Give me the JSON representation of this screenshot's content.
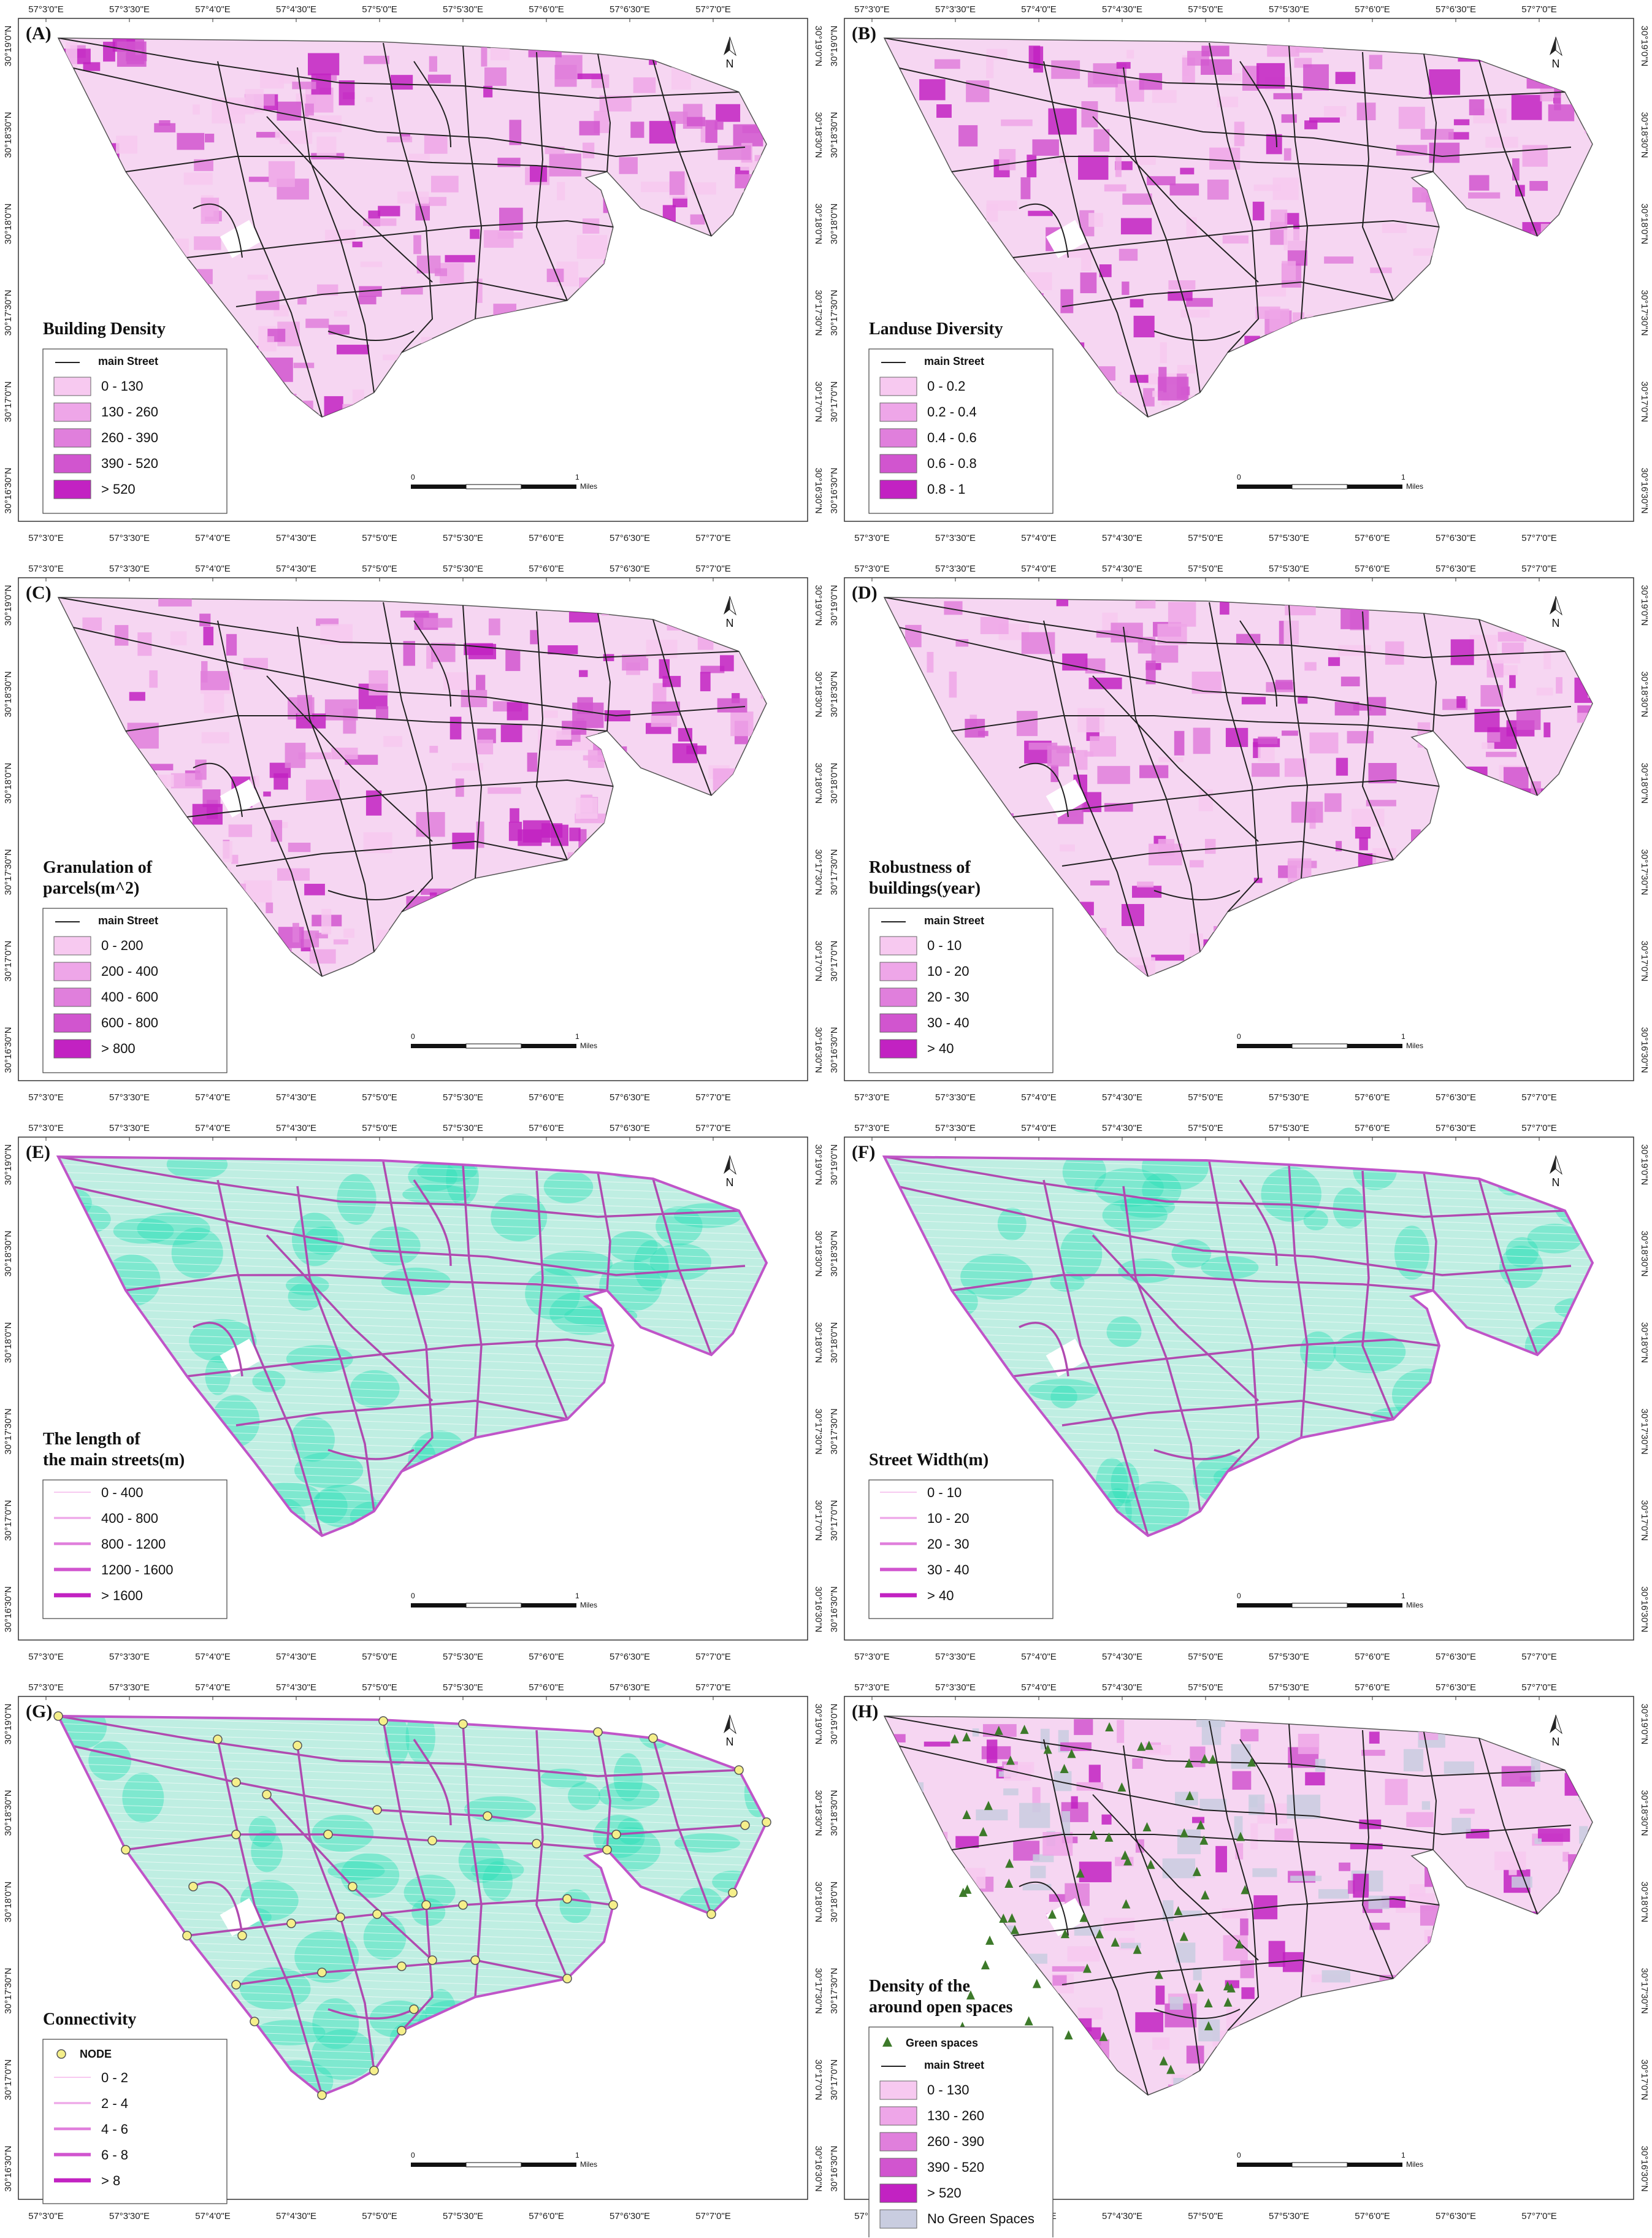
{
  "lon_labels": [
    "57°3'0\"E",
    "57°3'30\"E",
    "57°4'0\"E",
    "57°4'30\"E",
    "57°5'0\"E",
    "57°5'30\"E",
    "57°6'0\"E",
    "57°6'30\"E",
    "57°7'0\"E"
  ],
  "lat_labels": [
    "30°19'0\"N",
    "30°18'30\"N",
    "30°18'0\"N",
    "30°17'30\"N",
    "30°17'0\"N",
    "30°16'30\"N"
  ],
  "north_label": "N",
  "scale": {
    "zero": "0",
    "one": "1",
    "unit": "Miles"
  },
  "main_street_label": "main Street",
  "colors": {
    "pink_ramp": [
      "#f7c9f0",
      "#eea6e8",
      "#e07fdc",
      "#d155cf",
      "#c222c2"
    ],
    "street_black": "#222222",
    "teal": "#2ee0b8",
    "node_fill": "#f5ef8a",
    "green_space": "#3d7a2a",
    "no_green": "#c9cde0"
  },
  "panels": [
    {
      "id": "A",
      "letter": "(A)",
      "title_lines": [
        "Building Density"
      ],
      "legend_type": "fill",
      "show_street": true,
      "variant": "pink",
      "items": [
        "0 - 130",
        "130 - 260",
        "260 - 390",
        "390 - 520",
        "> 520"
      ]
    },
    {
      "id": "B",
      "letter": "(B)",
      "title_lines": [
        "Landuse Diversity"
      ],
      "legend_type": "fill",
      "show_street": true,
      "variant": "pink",
      "items": [
        "0 - 0.2",
        "0.2 - 0.4",
        "0.4 - 0.6",
        "0.6 - 0.8",
        "0.8 - 1"
      ]
    },
    {
      "id": "C",
      "letter": "(C)",
      "title_lines": [
        "Granulation of",
        "parcels(m^2)"
      ],
      "legend_type": "fill",
      "show_street": true,
      "variant": "pink",
      "items": [
        "0 - 200",
        "200 - 400",
        "400 - 600",
        "600 - 800",
        "> 800"
      ]
    },
    {
      "id": "D",
      "letter": "(D)",
      "title_lines": [
        "Robustness of",
        "buildings(year)"
      ],
      "legend_type": "fill",
      "show_street": true,
      "variant": "pink",
      "items": [
        "0 - 10",
        "10 - 20",
        "20 - 30",
        "30 - 40",
        "> 40"
      ]
    },
    {
      "id": "E",
      "letter": "(E)",
      "title_lines": [
        "The length of",
        "the main streets(m)"
      ],
      "legend_type": "line",
      "show_street": false,
      "variant": "teal",
      "items": [
        "0 - 400",
        "400 - 800",
        "800 - 1200",
        "1200 - 1600",
        "> 1600"
      ]
    },
    {
      "id": "F",
      "letter": "(F)",
      "title_lines": [
        "Street Width(m)"
      ],
      "legend_type": "line",
      "show_street": false,
      "variant": "teal",
      "items": [
        "0 - 10",
        "10 - 20",
        "20 - 30",
        "30 - 40",
        "> 40"
      ]
    },
    {
      "id": "G",
      "letter": "(G)",
      "title_lines": [
        "Connectivity"
      ],
      "legend_type": "line",
      "show_street": false,
      "variant": "teal-nodes",
      "node_label": "NODE",
      "items": [
        "0 - 2",
        "2 - 4",
        "4 - 6",
        "6 - 8",
        "> 8"
      ]
    },
    {
      "id": "H",
      "letter": "(H)",
      "title_lines": [
        "Density of the",
        "around open spaces"
      ],
      "legend_type": "fill",
      "show_street": true,
      "variant": "green",
      "green_label": "Green spaces",
      "no_green_label": "No Green Spaces",
      "items": [
        "0 - 130",
        "130 - 260",
        "260 - 390",
        "390 - 520",
        "> 520"
      ]
    }
  ]
}
